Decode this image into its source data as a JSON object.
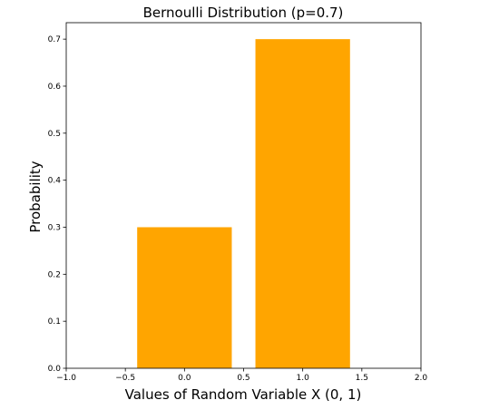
{
  "chart_data": {
    "type": "bar",
    "title": "Bernoulli Distribution (p=0.7)",
    "xlabel": "Values of Random Variable X (0, 1)",
    "ylabel": "Probability",
    "x": [
      0,
      1
    ],
    "values": [
      0.3,
      0.7
    ],
    "bar_width": 0.8,
    "color": "#FFA500",
    "xlim": [
      -1.0,
      2.0
    ],
    "ylim": [
      0.0,
      0.735
    ],
    "xticks": [
      "−1.0",
      "−0.5",
      "0.0",
      "0.5",
      "1.0",
      "1.5",
      "2.0"
    ],
    "xtick_values": [
      -1.0,
      -0.5,
      0.0,
      0.5,
      1.0,
      1.5,
      2.0
    ],
    "yticks": [
      "0.0",
      "0.1",
      "0.2",
      "0.3",
      "0.4",
      "0.5",
      "0.6",
      "0.7"
    ],
    "ytick_values": [
      0.0,
      0.1,
      0.2,
      0.3,
      0.4,
      0.5,
      0.6,
      0.7
    ],
    "grid": false,
    "legend": "none"
  }
}
